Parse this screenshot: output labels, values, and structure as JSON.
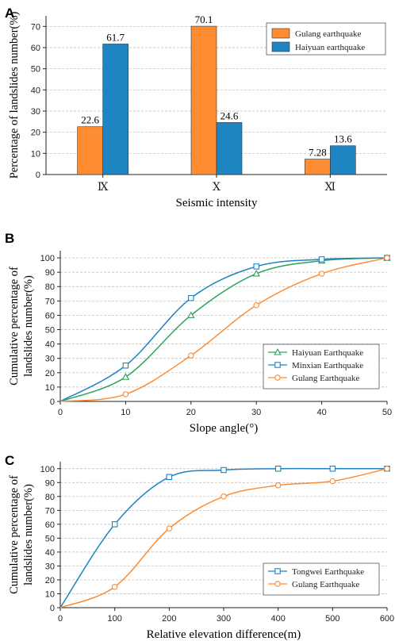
{
  "chart_data": [
    {
      "panel": "A",
      "type": "bar",
      "xlabel": "Seismic intensity",
      "ylabel": "Percentage of landslides number(%)",
      "categories": [
        "Ⅸ",
        "Ⅹ",
        "Ⅺ"
      ],
      "ylim": [
        0,
        75
      ],
      "yticks": [
        0,
        10,
        20,
        30,
        40,
        50,
        60,
        70
      ],
      "grid": true,
      "legend_position": "top-right",
      "series": [
        {
          "name": "Gulang earthquake",
          "color": "#fd8c32",
          "values": [
            22.6,
            70.1,
            7.28
          ],
          "labels": [
            "22.6",
            "70.1",
            "7.28"
          ]
        },
        {
          "name": "Haiyuan earthquake",
          "color": "#1f84c2",
          "values": [
            61.7,
            24.6,
            13.6
          ],
          "labels": [
            "61.7",
            "24.6",
            "13.6"
          ]
        }
      ]
    },
    {
      "panel": "B",
      "type": "line",
      "xlabel": "Slope angle(°)",
      "ylabel": [
        "Cumulative percentage of",
        "landslides number(%)"
      ],
      "xlim": [
        0,
        50
      ],
      "ylim": [
        0,
        105
      ],
      "xticks": [
        0,
        10,
        20,
        30,
        40,
        50
      ],
      "yticks": [
        0,
        10,
        20,
        30,
        40,
        50,
        60,
        70,
        80,
        90,
        100
      ],
      "grid": true,
      "legend_position": "bottom-right",
      "series": [
        {
          "name": "Haiyuan Earthquake",
          "color": "#2ca25a",
          "marker": "triangle",
          "x": [
            0,
            10,
            20,
            30,
            40,
            50
          ],
          "y": [
            0,
            17,
            60,
            89,
            98,
            100
          ]
        },
        {
          "name": "Minxian Earthquake",
          "color": "#1f84c2",
          "marker": "square",
          "x": [
            0,
            10,
            20,
            30,
            40,
            50
          ],
          "y": [
            0,
            25,
            72,
            94,
            99,
            100
          ]
        },
        {
          "name": "Gulang Earthquake",
          "color": "#fd8c32",
          "marker": "circle",
          "x": [
            0,
            10,
            20,
            30,
            40,
            50
          ],
          "y": [
            0,
            5,
            32,
            67,
            89,
            100
          ]
        }
      ]
    },
    {
      "panel": "C",
      "type": "line",
      "xlabel": "Relative elevation difference(m)",
      "ylabel": [
        "Cumulative percentage of",
        "landslides number(%)"
      ],
      "xlim": [
        0,
        600
      ],
      "ylim": [
        0,
        105
      ],
      "xticks": [
        0,
        100,
        200,
        300,
        400,
        500,
        600
      ],
      "yticks": [
        0,
        10,
        20,
        30,
        40,
        50,
        60,
        70,
        80,
        90,
        100
      ],
      "grid": true,
      "legend_position": "bottom-right",
      "series": [
        {
          "name": "Tongwei Earthquake",
          "color": "#1f84c2",
          "marker": "square",
          "x": [
            0,
            100,
            200,
            300,
            400,
            500,
            600
          ],
          "y": [
            0,
            60,
            94,
            99,
            100,
            100,
            100
          ]
        },
        {
          "name": "Gulang Earthquake",
          "color": "#fd8c32",
          "marker": "circle",
          "x": [
            0,
            100,
            200,
            300,
            400,
            500,
            600
          ],
          "y": [
            0,
            15,
            57,
            80,
            88,
            91,
            100
          ]
        }
      ]
    }
  ]
}
